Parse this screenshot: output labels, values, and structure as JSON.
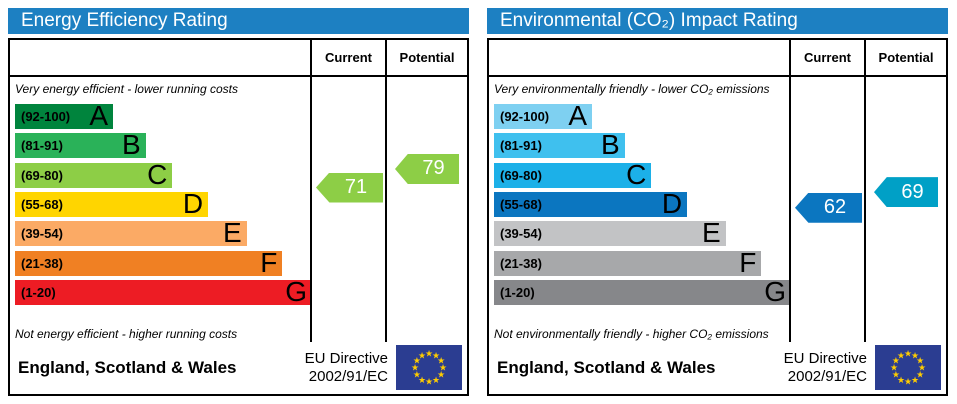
{
  "chart_data": [
    {
      "type": "bar",
      "subtype": "epc-rating-scale",
      "title": "Energy Efficiency Rating",
      "title_bar_color": "#1d80c2",
      "columns": {
        "current_label": "Current",
        "potential_label": "Potential"
      },
      "top_caption": "Very energy efficient - lower running costs",
      "bottom_caption": "Not energy efficient - higher running costs",
      "bands": [
        {
          "label": "(92-100)",
          "letter": "A",
          "min": 92,
          "max": 100,
          "color": "#00843d",
          "width_pct": 33
        },
        {
          "label": "(81-91)",
          "letter": "B",
          "min": 81,
          "max": 91,
          "color": "#2ab259",
          "width_pct": 44
        },
        {
          "label": "(69-80)",
          "letter": "C",
          "min": 69,
          "max": 80,
          "color": "#8dce46",
          "width_pct": 53
        },
        {
          "label": "(55-68)",
          "letter": "D",
          "min": 55,
          "max": 68,
          "color": "#ffd500",
          "width_pct": 65
        },
        {
          "label": "(39-54)",
          "letter": "E",
          "min": 39,
          "max": 54,
          "color": "#fbaa65",
          "width_pct": 78
        },
        {
          "label": "(21-38)",
          "letter": "F",
          "min": 21,
          "max": 38,
          "color": "#f08023",
          "width_pct": 90
        },
        {
          "label": "(1-20)",
          "letter": "G",
          "min": 1,
          "max": 20,
          "color": "#ed1c24",
          "width_pct": 100
        }
      ],
      "current": {
        "value": 71,
        "color": "#8dce46"
      },
      "potential": {
        "value": 79,
        "color": "#8dce46"
      },
      "footer": {
        "region": "England, Scotland & Wales",
        "directive_line1": "EU Directive",
        "directive_line2": "2002/91/EC",
        "flag_blue": "#2b3d91",
        "flag_star_color": "#ffcc00"
      }
    },
    {
      "type": "bar",
      "subtype": "epc-rating-scale",
      "title": "Environmental (CO₂) Impact Rating",
      "title_bar_color": "#1d80c2",
      "columns": {
        "current_label": "Current",
        "potential_label": "Potential"
      },
      "top_caption": "Very environmentally friendly - lower CO₂ emissions",
      "bottom_caption": "Not environmentally friendly - higher CO₂ emissions",
      "bands": [
        {
          "label": "(92-100)",
          "letter": "A",
          "min": 92,
          "max": 100,
          "color": "#7ed0f1",
          "width_pct": 33
        },
        {
          "label": "(81-91)",
          "letter": "B",
          "min": 81,
          "max": 91,
          "color": "#3fc0ee",
          "width_pct": 44
        },
        {
          "label": "(69-80)",
          "letter": "C",
          "min": 69,
          "max": 80,
          "color": "#1cb0e8",
          "width_pct": 53
        },
        {
          "label": "(55-68)",
          "letter": "D",
          "min": 55,
          "max": 68,
          "color": "#0b76c0",
          "width_pct": 65
        },
        {
          "label": "(39-54)",
          "letter": "E",
          "min": 39,
          "max": 54,
          "color": "#c2c3c5",
          "width_pct": 78
        },
        {
          "label": "(21-38)",
          "letter": "F",
          "min": 21,
          "max": 38,
          "color": "#a7a8aa",
          "width_pct": 90
        },
        {
          "label": "(1-20)",
          "letter": "G",
          "min": 1,
          "max": 20,
          "color": "#86878a",
          "width_pct": 100
        }
      ],
      "current": {
        "value": 62,
        "color": "#0b76c0"
      },
      "potential": {
        "value": 69,
        "color": "#00a0c6"
      },
      "footer": {
        "region": "England, Scotland & Wales",
        "directive_line1": "EU Directive",
        "directive_line2": "2002/91/EC",
        "flag_blue": "#2b3d91",
        "flag_star_color": "#ffcc00"
      }
    }
  ]
}
